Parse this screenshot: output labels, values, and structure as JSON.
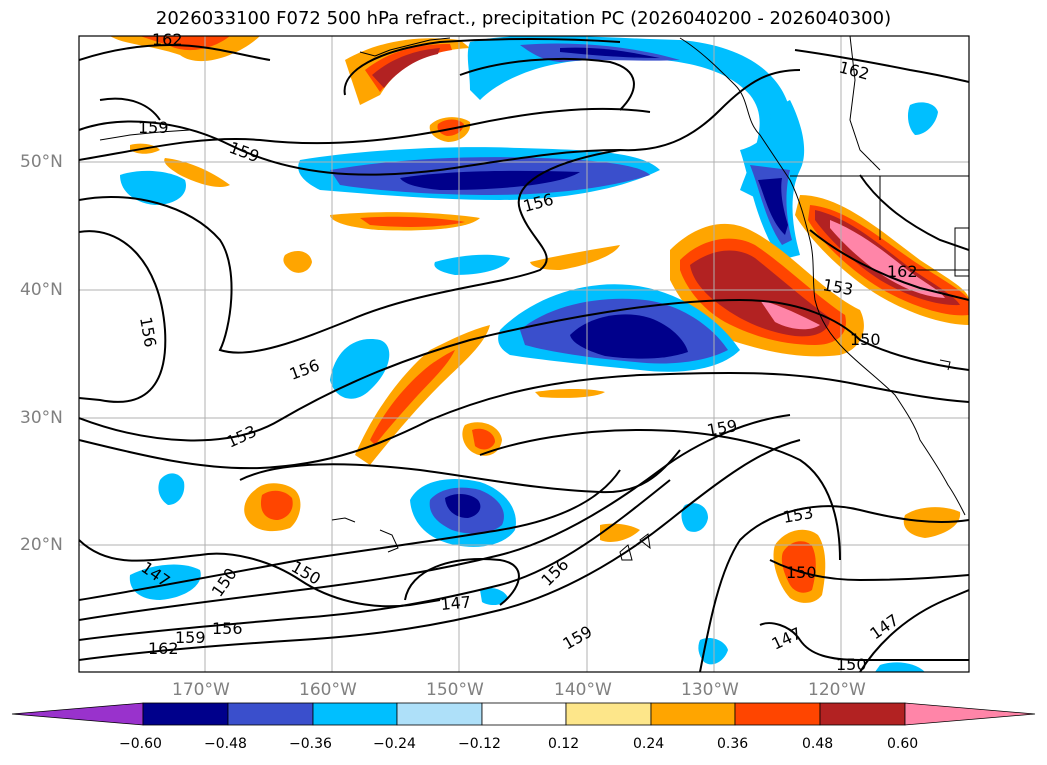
{
  "title": "2026033100 F072 500 hPa refract., precipitation PC (2026040200 - 2026040300)",
  "map": {
    "lat_labels": [
      "50°N",
      "40°N",
      "30°N",
      "20°N"
    ],
    "lon_labels": [
      "170°W",
      "160°W",
      "150°W",
      "140°W",
      "130°W",
      "120°W"
    ],
    "contour_labels": [
      "162",
      "159",
      "159",
      "162",
      "156",
      "156",
      "156",
      "153",
      "153",
      "162",
      "150",
      "159",
      "153",
      "147",
      "150",
      "150",
      "147",
      "156",
      "159",
      "156",
      "159",
      "162",
      "147",
      "147",
      "150",
      "150"
    ]
  },
  "colorbar": {
    "ticks": [
      "−0.60",
      "−0.48",
      "−0.36",
      "−0.24",
      "−0.12",
      "0.12",
      "0.24",
      "0.36",
      "0.48",
      "0.60"
    ],
    "colors": [
      "#9932cc",
      "#00008b",
      "#3a4fcc",
      "#00bfff",
      "#aee0f9",
      "#ffffff",
      "#fde68a",
      "#ffa500",
      "#ff4500",
      "#b22222",
      "#ff85a8"
    ]
  }
}
